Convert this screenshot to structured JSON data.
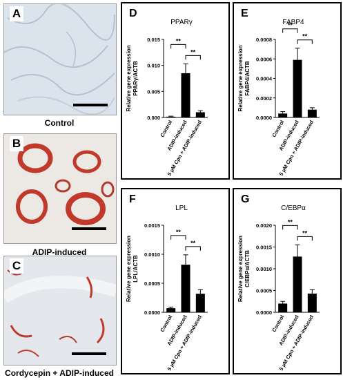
{
  "photos": [
    {
      "letter": "A",
      "caption": "Control"
    },
    {
      "letter": "B",
      "caption": "ADIP-induced"
    },
    {
      "letter": "C",
      "caption": "Cordycepin + ADIP-induced"
    }
  ],
  "colors": {
    "bar": "#000000",
    "stain": "#c0392b",
    "control_bg": "#dbe4ec",
    "cordy_bg": "#e4e8ec"
  },
  "chart_data": [
    {
      "panel": "D",
      "type": "bar",
      "title": "PPARγ",
      "ylabel": "Relative gene expression\nPPARγ/ACTB",
      "categories": [
        "Control",
        "ADIP-induced",
        "5 μM Cpn + ADIP-induced"
      ],
      "values": [
        0.00015,
        0.0085,
        0.001
      ],
      "errors": [
        0.0001,
        0.0018,
        0.0003
      ],
      "ylim": [
        0,
        0.015
      ],
      "ticks": [
        0,
        0.005,
        0.01,
        0.015
      ],
      "tick_labels": [
        "0.000",
        "0.005",
        "0.010",
        "0.015"
      ],
      "significance": [
        {
          "from": 0,
          "to": 1,
          "label": "**"
        },
        {
          "from": 1,
          "to": 2,
          "label": "**"
        }
      ]
    },
    {
      "panel": "E",
      "type": "bar",
      "title": "FABP4",
      "ylabel": "Relative gene expression\nFABP4/ACTB",
      "categories": [
        "Control",
        "ADIP-induced",
        "5 μM Cpn + ADIP-induced"
      ],
      "values": [
        4e-05,
        0.00059,
        8e-05
      ],
      "errors": [
        2e-05,
        0.00012,
        2e-05
      ],
      "ylim": [
        0,
        0.0008
      ],
      "ticks": [
        0,
        0.0002,
        0.0004,
        0.0006,
        0.0008
      ],
      "tick_labels": [
        "0.0000",
        "0.0002",
        "0.0004",
        "0.0006",
        "0.0008"
      ],
      "significance": [
        {
          "from": 0,
          "to": 1,
          "label": "**"
        },
        {
          "from": 1,
          "to": 2,
          "label": "**"
        }
      ]
    },
    {
      "panel": "F",
      "type": "bar",
      "title": "LPL",
      "ylabel": "Relative gene expression\nLPL/ACTB",
      "categories": [
        "Control",
        "ADIP-induced",
        "5 μM Cpn + ADIP-induced"
      ],
      "values": [
        7e-05,
        0.00082,
        0.00032
      ],
      "errors": [
        2e-05,
        0.00017,
        7e-05
      ],
      "ylim": [
        0,
        0.0015
      ],
      "ticks": [
        0,
        0.0005,
        0.001,
        0.0015
      ],
      "tick_labels": [
        "0.0000",
        "0.0005",
        "0.0010",
        "0.0015"
      ],
      "significance": [
        {
          "from": 0,
          "to": 1,
          "label": "**"
        },
        {
          "from": 1,
          "to": 2,
          "label": "**"
        }
      ]
    },
    {
      "panel": "G",
      "type": "bar",
      "title": "C/EBPα",
      "ylabel": "Relative gene expression\nC/EBPα/ACTB",
      "categories": [
        "Control",
        "ADIP-induced",
        "5 μM Cpn + ADIP-induced"
      ],
      "values": [
        0.0002,
        0.00128,
        0.00043
      ],
      "errors": [
        5e-05,
        0.00027,
        9e-05
      ],
      "ylim": [
        0,
        0.002
      ],
      "ticks": [
        0,
        0.0005,
        0.001,
        0.0015,
        0.002
      ],
      "tick_labels": [
        "0.0000",
        "0.0005",
        "0.0010",
        "0.0015",
        "0.0020"
      ],
      "significance": [
        {
          "from": 0,
          "to": 1,
          "label": "**"
        },
        {
          "from": 1,
          "to": 2,
          "label": "**"
        }
      ]
    }
  ]
}
